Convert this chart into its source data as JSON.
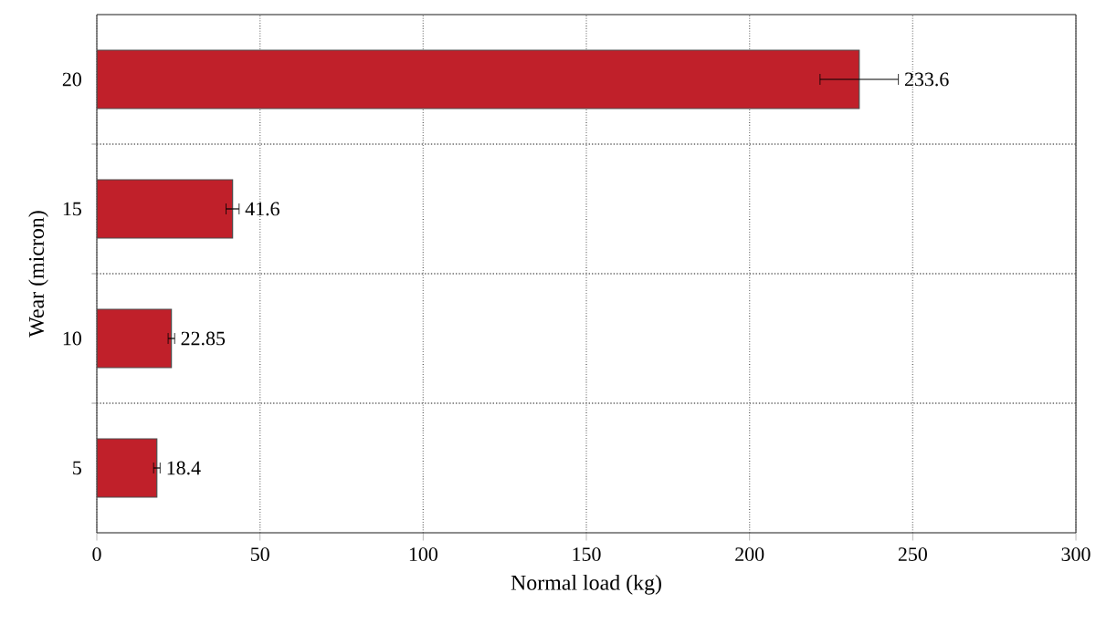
{
  "chart_data": {
    "type": "bar",
    "orientation": "horizontal",
    "xlabel": "Normal load (kg)",
    "ylabel": "Wear (micron)",
    "categories": [
      "20",
      "15",
      "10",
      "5"
    ],
    "values": [
      233.6,
      41.6,
      22.85,
      18.4
    ],
    "errors": [
      12,
      2,
      1,
      1
    ],
    "color": "#c0202a",
    "data_labels": true,
    "xlim": [
      0,
      300
    ],
    "xticks": [
      0,
      50,
      100,
      150,
      200,
      250,
      300
    ],
    "grid": true
  }
}
